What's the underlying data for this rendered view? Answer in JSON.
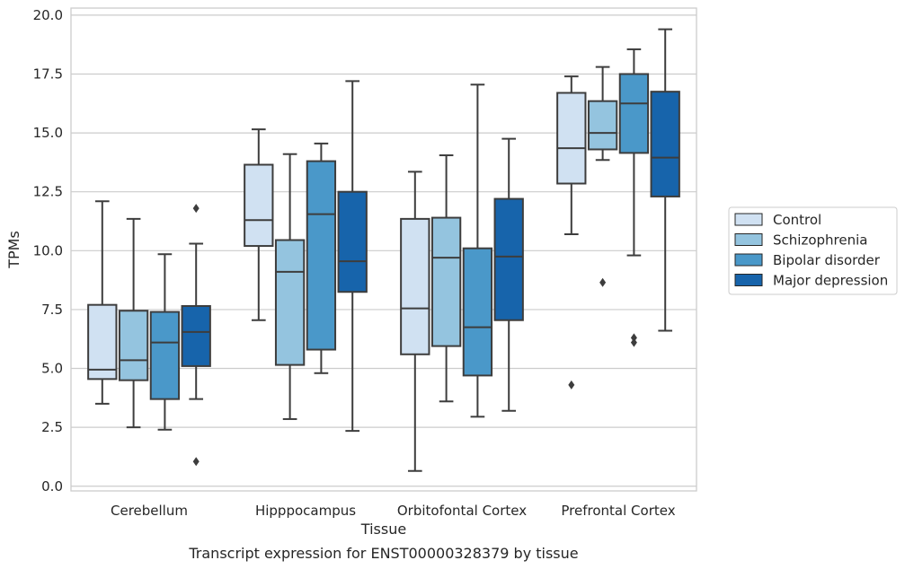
{
  "chart_data": {
    "type": "boxplot",
    "caption": "Transcript expression for ENST00000328379 by tissue",
    "xlabel": "Tissue",
    "ylabel": "TPMs",
    "ylim": [
      -0.2,
      20.3
    ],
    "yticks": [
      "0.0",
      "2.5",
      "5.0",
      "7.5",
      "10.0",
      "12.5",
      "15.0",
      "17.5",
      "20.0"
    ],
    "grid": "horizontal",
    "legend_position": "right",
    "categories": [
      "Cerebellum",
      "Hipppocampus",
      "Orbitofontal Cortex",
      "Prefrontal Cortex"
    ],
    "series": [
      {
        "name": "Control",
        "color": "#d0e1f2",
        "boxes": [
          {
            "whisker_low": 3.5,
            "q1": 4.55,
            "median": 4.95,
            "q3": 7.7,
            "whisker_high": 12.1,
            "outliers": []
          },
          {
            "whisker_low": 7.05,
            "q1": 10.2,
            "median": 11.3,
            "q3": 13.65,
            "whisker_high": 15.15,
            "outliers": []
          },
          {
            "whisker_low": 0.65,
            "q1": 5.6,
            "median": 7.55,
            "q3": 11.35,
            "whisker_high": 13.35,
            "outliers": []
          },
          {
            "whisker_low": 10.7,
            "q1": 12.85,
            "median": 14.35,
            "q3": 16.7,
            "whisker_high": 17.4,
            "outliers": [
              4.3
            ]
          }
        ]
      },
      {
        "name": "Schizophrenia",
        "color": "#94c4df",
        "boxes": [
          {
            "whisker_low": 2.5,
            "q1": 4.5,
            "median": 5.35,
            "q3": 7.45,
            "whisker_high": 11.35,
            "outliers": []
          },
          {
            "whisker_low": 2.85,
            "q1": 5.15,
            "median": 9.1,
            "q3": 10.45,
            "whisker_high": 14.1,
            "outliers": []
          },
          {
            "whisker_low": 3.6,
            "q1": 5.95,
            "median": 9.7,
            "q3": 11.4,
            "whisker_high": 14.05,
            "outliers": []
          },
          {
            "whisker_low": 13.85,
            "q1": 14.3,
            "median": 15.0,
            "q3": 16.35,
            "whisker_high": 17.8,
            "outliers": [
              8.65
            ]
          }
        ]
      },
      {
        "name": "Bipolar disorder",
        "color": "#4a98c9",
        "boxes": [
          {
            "whisker_low": 2.4,
            "q1": 3.7,
            "median": 6.1,
            "q3": 7.4,
            "whisker_high": 9.85,
            "outliers": []
          },
          {
            "whisker_low": 4.8,
            "q1": 5.8,
            "median": 11.55,
            "q3": 13.8,
            "whisker_high": 14.55,
            "outliers": []
          },
          {
            "whisker_low": 2.95,
            "q1": 4.7,
            "median": 6.75,
            "q3": 10.1,
            "whisker_high": 17.05,
            "outliers": []
          },
          {
            "whisker_low": 9.8,
            "q1": 14.15,
            "median": 16.25,
            "q3": 17.5,
            "whisker_high": 18.55,
            "outliers": [
              6.3,
              6.1
            ]
          }
        ]
      },
      {
        "name": "Major depression",
        "color": "#1764ab",
        "boxes": [
          {
            "whisker_low": 3.7,
            "q1": 5.1,
            "median": 6.55,
            "q3": 7.65,
            "whisker_high": 10.3,
            "outliers": [
              11.8,
              1.05
            ]
          },
          {
            "whisker_low": 2.35,
            "q1": 8.25,
            "median": 9.55,
            "q3": 12.5,
            "whisker_high": 17.2,
            "outliers": []
          },
          {
            "whisker_low": 3.2,
            "q1": 7.05,
            "median": 9.75,
            "q3": 12.2,
            "whisker_high": 14.75,
            "outliers": []
          },
          {
            "whisker_low": 6.6,
            "q1": 12.3,
            "median": 13.95,
            "q3": 16.75,
            "whisker_high": 19.4,
            "outliers": []
          }
        ]
      }
    ]
  }
}
